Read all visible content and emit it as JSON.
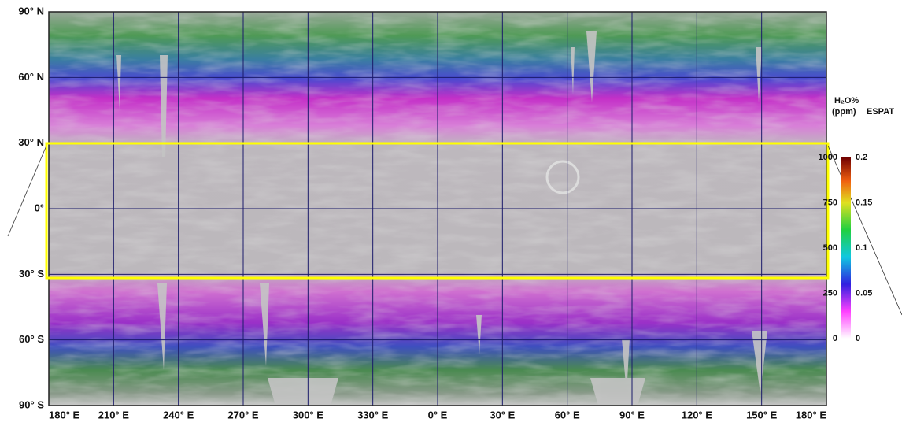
{
  "map": {
    "lat_labels": [
      "90° N",
      "60° N",
      "30° N",
      "0°",
      "30° S",
      "60° S",
      "90° S"
    ],
    "lon_labels": [
      "180° E",
      "210° E",
      "240° E",
      "270° E",
      "300° E",
      "330° E",
      "0° E",
      "30° E",
      "60° E",
      "90° E",
      "120° E",
      "150° E",
      "180° E"
    ],
    "legend": {
      "left_title": [
        "H₂O%",
        "(ppm)"
      ],
      "right_title": "ESPAT",
      "left_ticks": [
        "1000",
        "750",
        "500",
        "250",
        "0"
      ],
      "right_ticks": [
        "0.2",
        "0.15",
        "0.1",
        "0.05",
        "0"
      ]
    }
  }
}
